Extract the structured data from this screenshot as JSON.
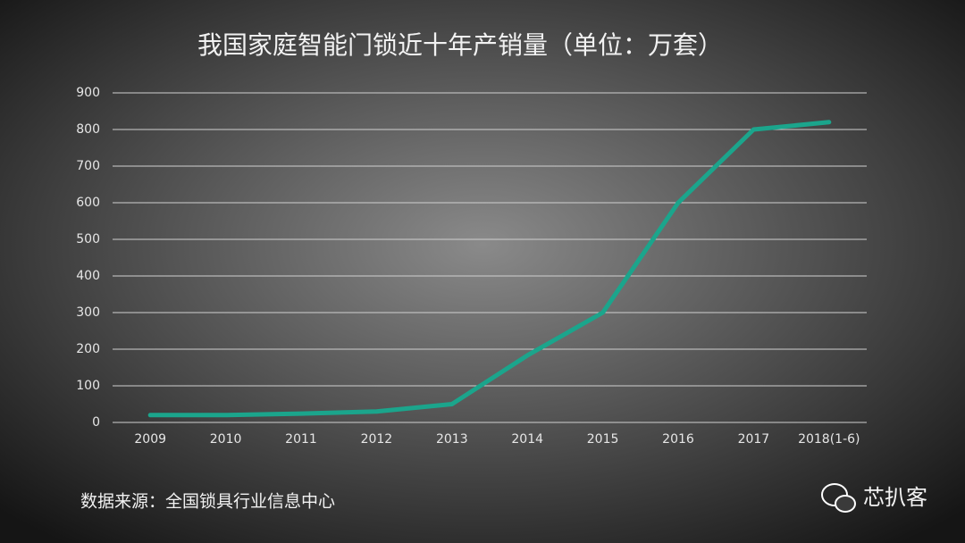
{
  "chart_data": {
    "type": "line",
    "title": "我国家庭智能门锁近十年产销量（单位：万套）",
    "categories": [
      "2009",
      "2010",
      "2011",
      "2012",
      "2013",
      "2014",
      "2015",
      "2016",
      "2017",
      "2018(1-6)"
    ],
    "series": [
      {
        "name": "产销量",
        "color": "#1ba58c",
        "values": [
          20,
          20,
          24,
          30,
          50,
          183,
          300,
          600,
          800,
          820
        ]
      }
    ],
    "ylim": [
      0,
      900
    ],
    "yticks": [
      0,
      100,
      200,
      300,
      400,
      500,
      600,
      700,
      800,
      900
    ],
    "grid": true,
    "source": "数据来源：全国锁具行业信息中心",
    "brand": "芯扒客"
  }
}
